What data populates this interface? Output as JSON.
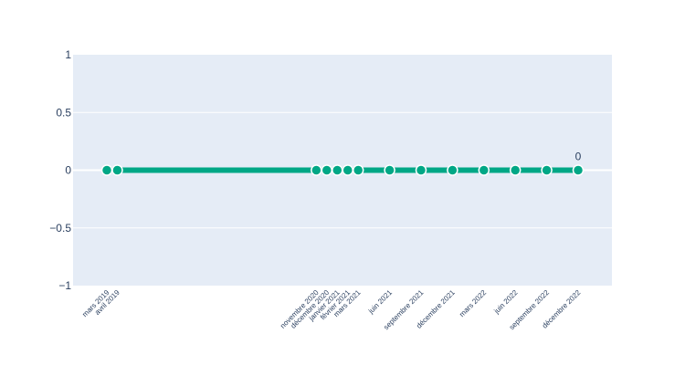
{
  "chart_data": {
    "type": "line",
    "x": [
      "mars 2019",
      "avril 2019",
      "novembre 2020",
      "décembre 2020",
      "janvier 2021",
      "février 2021",
      "mars 2021",
      "juin 2021",
      "septembre 2021",
      "décembre 2021",
      "mars 2022",
      "juin 2022",
      "septembre 2022",
      "décembre 2022"
    ],
    "x_month_index": [
      2,
      3,
      22,
      23,
      24,
      25,
      26,
      29,
      32,
      35,
      38,
      41,
      44,
      47
    ],
    "series": [
      {
        "values": [
          0,
          0,
          0,
          0,
          0,
          0,
          0,
          0,
          0,
          0,
          0,
          0,
          0,
          0
        ]
      }
    ],
    "data_labels": [
      {
        "point_index": 13,
        "text": "0"
      }
    ],
    "yticks": [
      "1",
      "0.5",
      "0",
      "−0.5",
      "−1"
    ],
    "ylim": [
      -1,
      1
    ],
    "grid": true,
    "colors": {
      "line": "#00a786",
      "marker_fill": "#00a786",
      "marker_edge": "#ffffff",
      "plot_bg": "#e5ecf6",
      "grid": "#ffffff",
      "text": "#2a3f5f"
    }
  }
}
